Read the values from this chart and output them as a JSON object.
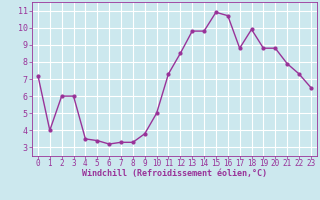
{
  "x": [
    0,
    1,
    2,
    3,
    4,
    5,
    6,
    7,
    8,
    9,
    10,
    11,
    12,
    13,
    14,
    15,
    16,
    17,
    18,
    19,
    20,
    21,
    22,
    23
  ],
  "y": [
    7.2,
    4.0,
    6.0,
    6.0,
    3.5,
    3.4,
    3.2,
    3.3,
    3.3,
    3.8,
    5.0,
    7.3,
    8.5,
    9.8,
    9.8,
    10.9,
    10.7,
    8.8,
    9.9,
    8.8,
    8.8,
    7.9,
    7.3,
    6.5
  ],
  "line_color": "#993399",
  "marker": "o",
  "marker_size": 2.0,
  "line_width": 1.0,
  "bg_color": "#cce8ee",
  "grid_color": "#ffffff",
  "xlabel": "Windchill (Refroidissement éolien,°C)",
  "xlabel_color": "#993399",
  "tick_color": "#993399",
  "label_color": "#993399",
  "ylim": [
    2.5,
    11.5
  ],
  "yticks": [
    3,
    4,
    5,
    6,
    7,
    8,
    9,
    10,
    11
  ],
  "xlim": [
    -0.5,
    23.5
  ],
  "xticks": [
    0,
    1,
    2,
    3,
    4,
    5,
    6,
    7,
    8,
    9,
    10,
    11,
    12,
    13,
    14,
    15,
    16,
    17,
    18,
    19,
    20,
    21,
    22,
    23
  ],
  "tick_fontsize": 5.5,
  "xlabel_fontsize": 6.0
}
